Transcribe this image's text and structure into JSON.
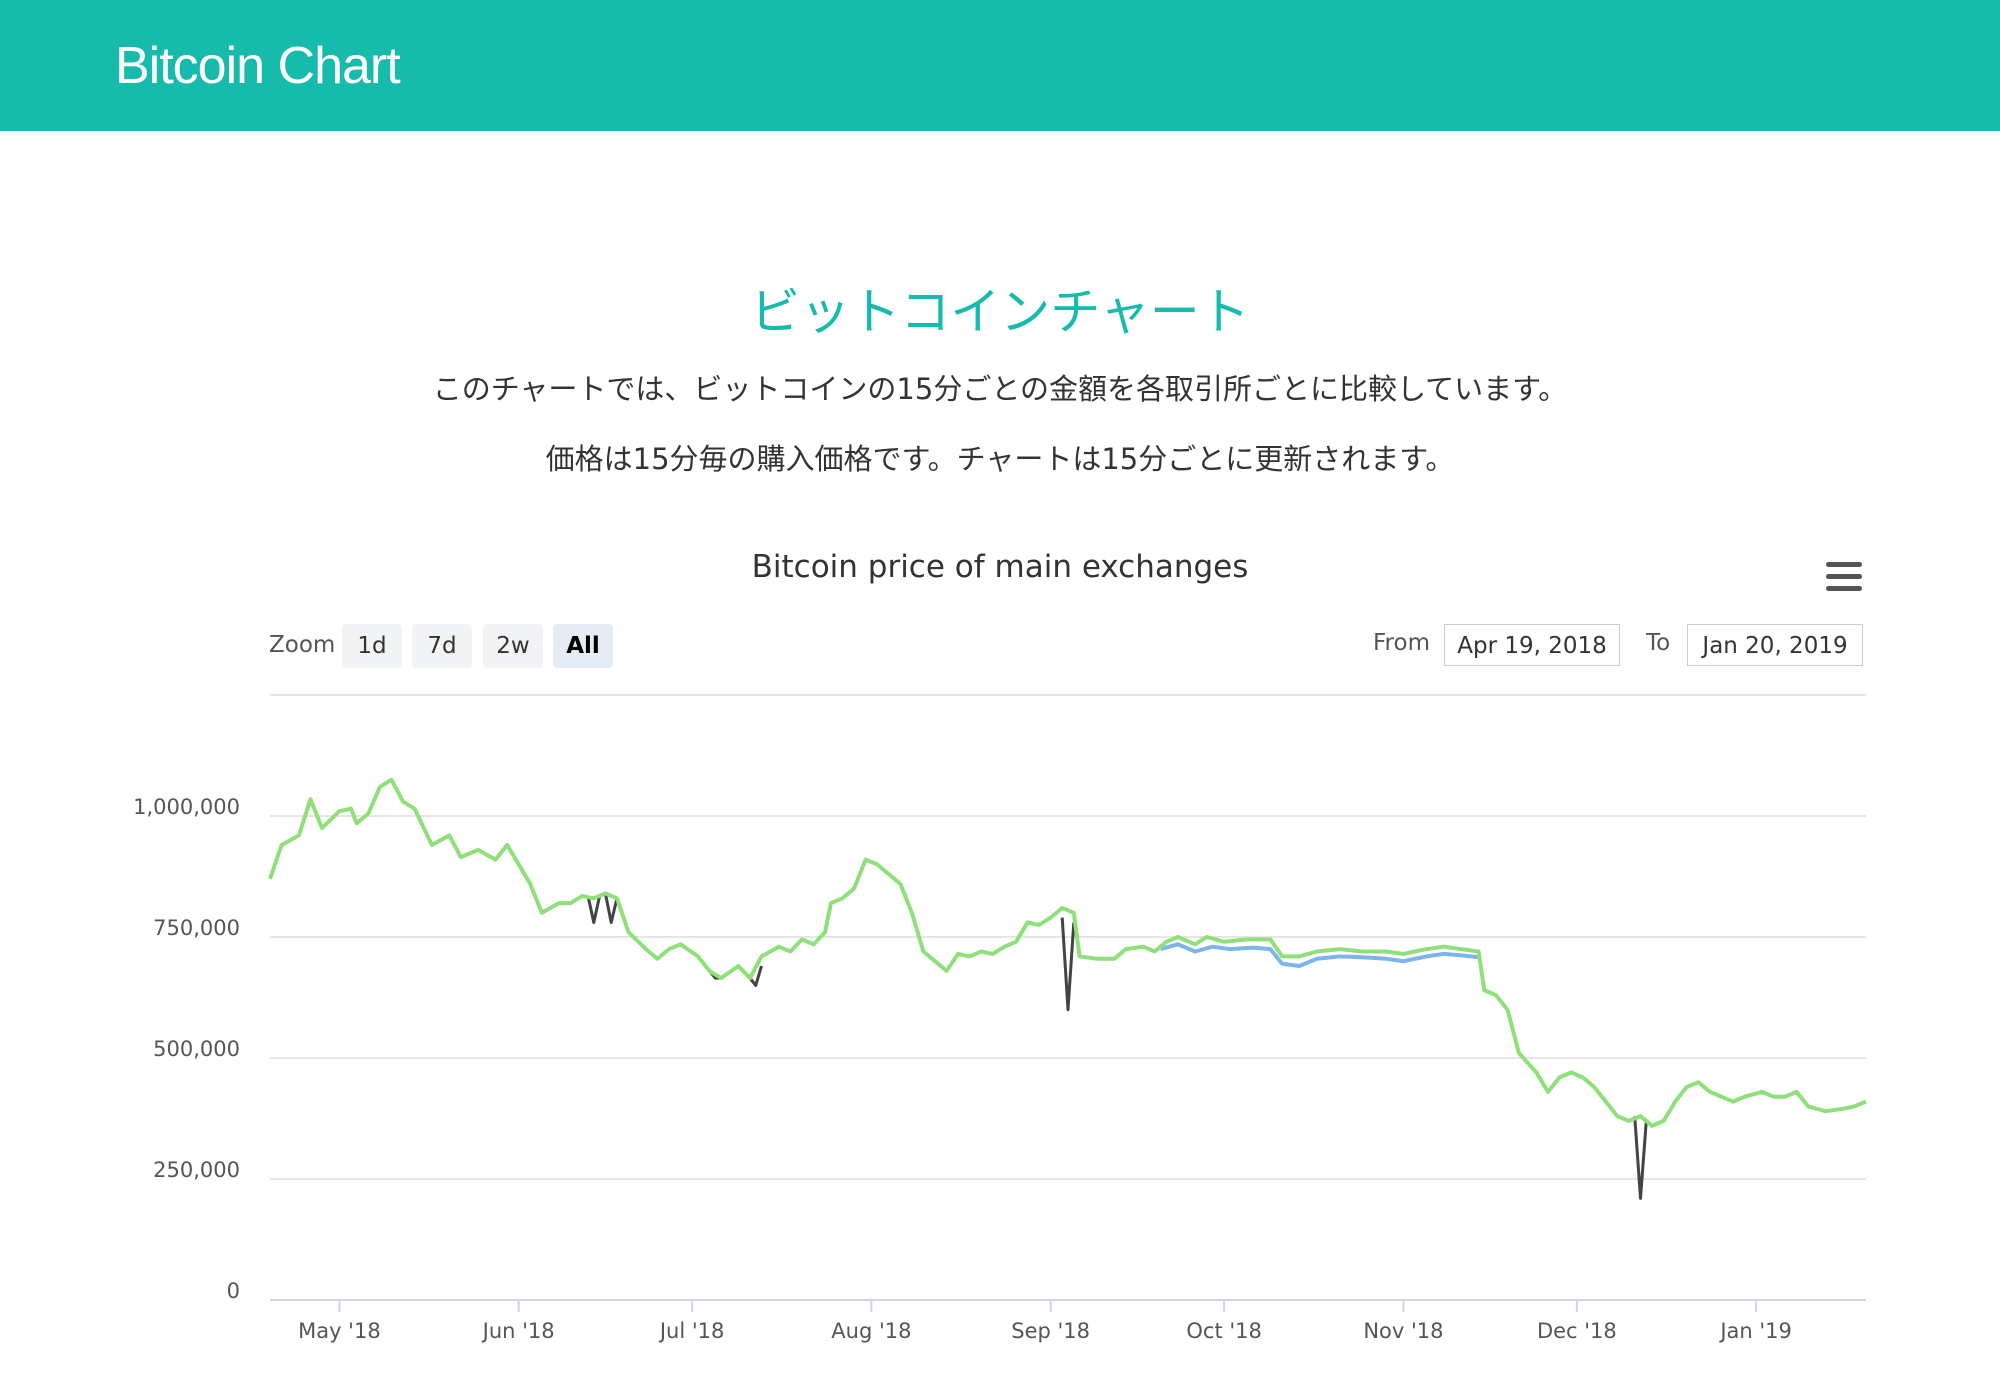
{
  "brand": {
    "name": "Bitcoin Chart"
  },
  "page": {
    "heading": "ビットコインチャート",
    "desc1": "このチャートでは、ビットコインの15分ごとの金額を各取引所ごとに比較しています。",
    "desc2": "価格は15分毎の購入価格です。チャートは15分ごとに更新されます。"
  },
  "controls": {
    "zoom_label": "Zoom",
    "zoom_buttons": [
      "1d",
      "7d",
      "2w",
      "All"
    ],
    "selected_zoom": "All",
    "from_label": "From",
    "from_value": "Apr 19, 2018",
    "to_label": "To",
    "to_value": "Jan 20, 2019",
    "menu_icon": "hamburger-menu-icon"
  },
  "colors": {
    "brand": "#17bbac",
    "green_series": "#8fe07a",
    "blue_series": "#7cb5ec",
    "dark_series": "#434348"
  },
  "chart_data": {
    "type": "line",
    "title": "Bitcoin price of main exchanges",
    "xlabel": "",
    "ylabel": "",
    "x_range": [
      "2018-04-19",
      "2019-01-20"
    ],
    "ylim": [
      0,
      1250000
    ],
    "yticks": [
      0,
      250000,
      500000,
      750000,
      1000000
    ],
    "ytick_labels": [
      "0",
      "250,000",
      "500,000",
      "750,000",
      "1,000,000"
    ],
    "xticks": [
      "2018-05-01",
      "2018-06-01",
      "2018-07-01",
      "2018-08-01",
      "2018-09-01",
      "2018-10-01",
      "2018-11-01",
      "2018-12-01",
      "2019-01-01"
    ],
    "xtick_labels": [
      "May '18",
      "Jun '18",
      "Jul '18",
      "Aug '18",
      "Sep '18",
      "Oct '18",
      "Nov '18",
      "Dec '18",
      "Jan '19"
    ],
    "grid": true,
    "series": [
      {
        "color": "#8fe07a",
        "points": [
          [
            "2018-04-19",
            870000
          ],
          [
            "2018-04-21",
            940000
          ],
          [
            "2018-04-24",
            960000
          ],
          [
            "2018-04-26",
            1035000
          ],
          [
            "2018-04-28",
            975000
          ],
          [
            "2018-05-01",
            1010000
          ],
          [
            "2018-05-03",
            1015000
          ],
          [
            "2018-05-04",
            985000
          ],
          [
            "2018-05-06",
            1005000
          ],
          [
            "2018-05-08",
            1060000
          ],
          [
            "2018-05-10",
            1075000
          ],
          [
            "2018-05-12",
            1030000
          ],
          [
            "2018-05-14",
            1015000
          ],
          [
            "2018-05-17",
            940000
          ],
          [
            "2018-05-20",
            960000
          ],
          [
            "2018-05-22",
            915000
          ],
          [
            "2018-05-25",
            930000
          ],
          [
            "2018-05-28",
            910000
          ],
          [
            "2018-05-30",
            940000
          ],
          [
            "2018-06-01",
            900000
          ],
          [
            "2018-06-03",
            860000
          ],
          [
            "2018-06-05",
            800000
          ],
          [
            "2018-06-08",
            820000
          ],
          [
            "2018-06-10",
            820000
          ],
          [
            "2018-06-12",
            835000
          ],
          [
            "2018-06-14",
            830000
          ],
          [
            "2018-06-16",
            840000
          ],
          [
            "2018-06-18",
            830000
          ],
          [
            "2018-06-20",
            760000
          ],
          [
            "2018-06-23",
            725000
          ],
          [
            "2018-06-25",
            705000
          ],
          [
            "2018-06-27",
            725000
          ],
          [
            "2018-06-29",
            735000
          ],
          [
            "2018-07-02",
            710000
          ],
          [
            "2018-07-04",
            680000
          ],
          [
            "2018-07-06",
            665000
          ],
          [
            "2018-07-09",
            690000
          ],
          [
            "2018-07-11",
            665000
          ],
          [
            "2018-07-13",
            710000
          ],
          [
            "2018-07-16",
            730000
          ],
          [
            "2018-07-18",
            720000
          ],
          [
            "2018-07-20",
            745000
          ],
          [
            "2018-07-22",
            735000
          ],
          [
            "2018-07-24",
            760000
          ],
          [
            "2018-07-25",
            820000
          ],
          [
            "2018-07-27",
            830000
          ],
          [
            "2018-07-29",
            850000
          ],
          [
            "2018-07-31",
            910000
          ],
          [
            "2018-08-02",
            900000
          ],
          [
            "2018-08-04",
            880000
          ],
          [
            "2018-08-06",
            860000
          ],
          [
            "2018-08-08",
            800000
          ],
          [
            "2018-08-10",
            720000
          ],
          [
            "2018-08-12",
            700000
          ],
          [
            "2018-08-14",
            680000
          ],
          [
            "2018-08-16",
            715000
          ],
          [
            "2018-08-18",
            710000
          ],
          [
            "2018-08-20",
            720000
          ],
          [
            "2018-08-22",
            715000
          ],
          [
            "2018-08-24",
            730000
          ],
          [
            "2018-08-26",
            740000
          ],
          [
            "2018-08-28",
            780000
          ],
          [
            "2018-08-30",
            775000
          ],
          [
            "2018-09-01",
            790000
          ],
          [
            "2018-09-03",
            810000
          ],
          [
            "2018-09-05",
            800000
          ],
          [
            "2018-09-06",
            710000
          ],
          [
            "2018-09-09",
            705000
          ],
          [
            "2018-09-12",
            705000
          ],
          [
            "2018-09-14",
            725000
          ],
          [
            "2018-09-17",
            730000
          ],
          [
            "2018-09-19",
            720000
          ],
          [
            "2018-09-21",
            740000
          ],
          [
            "2018-09-23",
            750000
          ],
          [
            "2018-09-26",
            735000
          ],
          [
            "2018-09-28",
            750000
          ],
          [
            "2018-10-01",
            740000
          ],
          [
            "2018-10-05",
            745000
          ],
          [
            "2018-10-09",
            745000
          ],
          [
            "2018-10-11",
            710000
          ],
          [
            "2018-10-14",
            710000
          ],
          [
            "2018-10-17",
            720000
          ],
          [
            "2018-10-21",
            725000
          ],
          [
            "2018-10-25",
            720000
          ],
          [
            "2018-10-29",
            720000
          ],
          [
            "2018-11-01",
            715000
          ],
          [
            "2018-11-05",
            725000
          ],
          [
            "2018-11-08",
            730000
          ],
          [
            "2018-11-11",
            725000
          ],
          [
            "2018-11-14",
            720000
          ],
          [
            "2018-11-15",
            640000
          ],
          [
            "2018-11-17",
            630000
          ],
          [
            "2018-11-19",
            600000
          ],
          [
            "2018-11-21",
            510000
          ],
          [
            "2018-11-24",
            470000
          ],
          [
            "2018-11-26",
            430000
          ],
          [
            "2018-11-28",
            460000
          ],
          [
            "2018-11-30",
            470000
          ],
          [
            "2018-12-02",
            460000
          ],
          [
            "2018-12-04",
            440000
          ],
          [
            "2018-12-06",
            410000
          ],
          [
            "2018-12-08",
            380000
          ],
          [
            "2018-12-10",
            370000
          ],
          [
            "2018-12-12",
            380000
          ],
          [
            "2018-12-14",
            360000
          ],
          [
            "2018-12-16",
            370000
          ],
          [
            "2018-12-18",
            410000
          ],
          [
            "2018-12-20",
            440000
          ],
          [
            "2018-12-22",
            450000
          ],
          [
            "2018-12-24",
            430000
          ],
          [
            "2018-12-26",
            420000
          ],
          [
            "2018-12-28",
            410000
          ],
          [
            "2018-12-30",
            420000
          ],
          [
            "2019-01-02",
            430000
          ],
          [
            "2019-01-04",
            420000
          ],
          [
            "2019-01-06",
            420000
          ],
          [
            "2019-01-08",
            430000
          ],
          [
            "2019-01-10",
            400000
          ],
          [
            "2019-01-13",
            390000
          ],
          [
            "2019-01-16",
            395000
          ],
          [
            "2019-01-18",
            400000
          ],
          [
            "2019-01-20",
            410000
          ]
        ]
      },
      {
        "color": "#7cb5ec",
        "points": [
          [
            "2018-09-20",
            725000
          ],
          [
            "2018-09-23",
            735000
          ],
          [
            "2018-09-26",
            720000
          ],
          [
            "2018-09-29",
            730000
          ],
          [
            "2018-10-02",
            725000
          ],
          [
            "2018-10-06",
            728000
          ],
          [
            "2018-10-09",
            725000
          ],
          [
            "2018-10-11",
            695000
          ],
          [
            "2018-10-14",
            690000
          ],
          [
            "2018-10-17",
            705000
          ],
          [
            "2018-10-21",
            710000
          ],
          [
            "2018-10-25",
            708000
          ],
          [
            "2018-10-29",
            705000
          ],
          [
            "2018-11-01",
            700000
          ],
          [
            "2018-11-05",
            710000
          ],
          [
            "2018-11-08",
            715000
          ],
          [
            "2018-11-11",
            712000
          ],
          [
            "2018-11-14",
            708000
          ]
        ]
      },
      {
        "color": "#434348",
        "points": [
          [
            "2018-06-13",
            835000
          ],
          [
            "2018-06-14",
            780000
          ],
          [
            "2018-06-15",
            835000
          ],
          [
            "2018-06-16",
            840000
          ],
          [
            "2018-06-17",
            780000
          ],
          [
            "2018-06-18",
            830000
          ],
          [
            "2018-07-04",
            680000
          ],
          [
            "2018-07-05",
            665000
          ],
          [
            "2018-07-06",
            665000
          ],
          [
            "2018-07-11",
            665000
          ],
          [
            "2018-07-12",
            650000
          ],
          [
            "2018-07-13",
            690000
          ],
          [
            "2018-09-03",
            790000
          ],
          [
            "2018-09-04",
            600000
          ],
          [
            "2018-09-05",
            780000
          ],
          [
            "2018-12-11",
            380000
          ],
          [
            "2018-12-12",
            210000
          ],
          [
            "2018-12-13",
            370000
          ]
        ]
      }
    ]
  }
}
